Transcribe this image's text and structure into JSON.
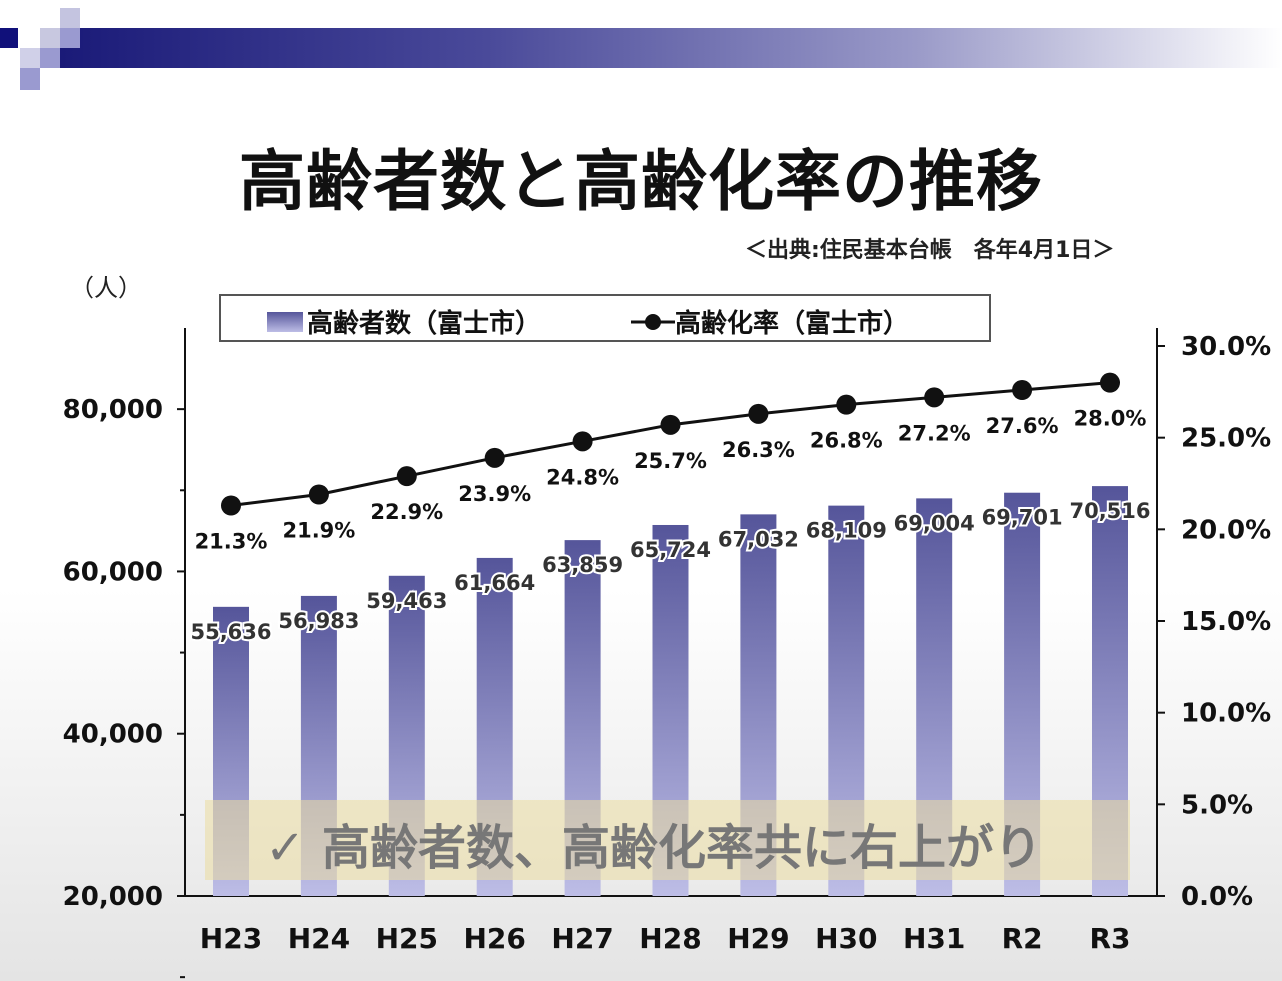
{
  "title": "高齢者数と高齢化率の推移",
  "source": "＜出典:住民基本台帳　各年4月1日＞",
  "banner": {
    "check_icon": "✓",
    "text": "高齢者数、高齢化率共に右上がり"
  },
  "colors": {
    "bar_top": "#55559a",
    "bar_bottom": "#bdbde6",
    "line": "#111111"
  },
  "chart_data": {
    "type": "bar+line",
    "title": "高齢者数と高齢化率の推移",
    "categories": [
      "H23",
      "H24",
      "H25",
      "H26",
      "H27",
      "H28",
      "H29",
      "H30",
      "H31",
      "R2",
      "R3"
    ],
    "ylabel": "（人）",
    "ylim": [
      20000,
      90000
    ],
    "y_ticks": [
      "20,000",
      "40,000",
      "60,000",
      "80,000"
    ],
    "y2lim": [
      0,
      30
    ],
    "y2_ticks": [
      "0.0%",
      "5.0%",
      "10.0%",
      "15.0%",
      "20.0%",
      "25.0%",
      "30.0%"
    ],
    "legend_position": "top",
    "grid": false,
    "series": [
      {
        "name": "高齢者数（富士市）",
        "type": "bar",
        "axis": "left",
        "values": [
          55636,
          56983,
          59463,
          61664,
          63859,
          65724,
          67032,
          68109,
          69004,
          69701,
          70516
        ],
        "labels": [
          "55,636",
          "56,983",
          "59,463",
          "61,664",
          "63,859",
          "65,724",
          "67,032",
          "68,109",
          "69,004",
          "69,701",
          "70,516"
        ]
      },
      {
        "name": "高齢化率（富士市）",
        "type": "line",
        "axis": "right",
        "values": [
          21.3,
          21.9,
          22.9,
          23.9,
          24.8,
          25.7,
          26.3,
          26.8,
          27.2,
          27.6,
          28.0
        ],
        "labels": [
          "21.3%",
          "21.9%",
          "22.9%",
          "23.9%",
          "24.8%",
          "25.7%",
          "26.3%",
          "26.8%",
          "27.2%",
          "27.6%",
          "28.0%"
        ]
      }
    ]
  }
}
